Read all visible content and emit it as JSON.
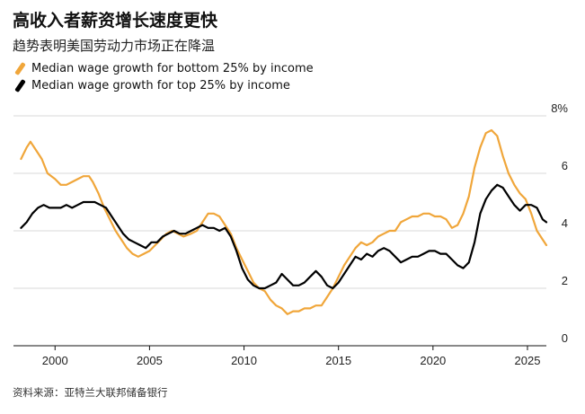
{
  "header": {
    "title": "高收入者薪资增长速度更快",
    "subtitle": "趋势表明美国劳动力市场正在降温"
  },
  "legend": [
    {
      "label": "Median wage growth for bottom 25% by income",
      "color": "#f0a63a"
    },
    {
      "label": "Median wage growth for top 25% by income",
      "color": "#000000"
    }
  ],
  "footer": {
    "source": "资料来源：亚特兰大联邦储备银行"
  },
  "chart_data": {
    "type": "line",
    "title": "高收入者薪资增长速度更快",
    "subtitle": "趋势表明美国劳动力市场正在降温",
    "xlabel": "",
    "ylabel": "",
    "xlim": [
      1997.8,
      2026.0
    ],
    "ylim": [
      0,
      8
    ],
    "grid": true,
    "x_ticks": [
      {
        "value": 2000,
        "label": "2000"
      },
      {
        "value": 2005,
        "label": "2005"
      },
      {
        "value": 2010,
        "label": "2010"
      },
      {
        "value": 2015,
        "label": "2015"
      },
      {
        "value": 2020,
        "label": "2020"
      },
      {
        "value": 2025,
        "label": "2025"
      }
    ],
    "y_ticks": [
      {
        "value": 0,
        "label": "0"
      },
      {
        "value": 2,
        "label": "2"
      },
      {
        "value": 4,
        "label": "4"
      },
      {
        "value": 6,
        "label": "6"
      },
      {
        "value": 8,
        "label": "8%"
      }
    ],
    "series": [
      {
        "name": "Median wage growth for bottom 25% by income",
        "color": "#f0a63a",
        "points": [
          [
            1998.2,
            6.5
          ],
          [
            1998.5,
            6.9
          ],
          [
            1998.7,
            7.1
          ],
          [
            1999.0,
            6.8
          ],
          [
            1999.3,
            6.5
          ],
          [
            1999.6,
            6.0
          ],
          [
            2000.0,
            5.8
          ],
          [
            2000.3,
            5.6
          ],
          [
            2000.6,
            5.6
          ],
          [
            2000.9,
            5.7
          ],
          [
            2001.2,
            5.8
          ],
          [
            2001.5,
            5.9
          ],
          [
            2001.8,
            5.9
          ],
          [
            2002.0,
            5.7
          ],
          [
            2002.3,
            5.3
          ],
          [
            2002.6,
            4.8
          ],
          [
            2002.9,
            4.4
          ],
          [
            2003.2,
            4.0
          ],
          [
            2003.5,
            3.7
          ],
          [
            2003.8,
            3.4
          ],
          [
            2004.1,
            3.2
          ],
          [
            2004.4,
            3.1
          ],
          [
            2004.7,
            3.2
          ],
          [
            2005.0,
            3.3
          ],
          [
            2005.3,
            3.5
          ],
          [
            2005.6,
            3.7
          ],
          [
            2005.9,
            3.9
          ],
          [
            2006.2,
            4.0
          ],
          [
            2006.5,
            3.9
          ],
          [
            2006.8,
            3.8
          ],
          [
            2007.2,
            3.9
          ],
          [
            2007.5,
            4.0
          ],
          [
            2007.8,
            4.3
          ],
          [
            2008.1,
            4.6
          ],
          [
            2008.4,
            4.6
          ],
          [
            2008.7,
            4.5
          ],
          [
            2009.0,
            4.2
          ],
          [
            2009.3,
            3.9
          ],
          [
            2009.6,
            3.4
          ],
          [
            2009.9,
            3.0
          ],
          [
            2010.2,
            2.6
          ],
          [
            2010.5,
            2.2
          ],
          [
            2010.8,
            2.0
          ],
          [
            2011.1,
            1.9
          ],
          [
            2011.4,
            1.6
          ],
          [
            2011.7,
            1.4
          ],
          [
            2012.0,
            1.3
          ],
          [
            2012.3,
            1.1
          ],
          [
            2012.6,
            1.2
          ],
          [
            2012.9,
            1.2
          ],
          [
            2013.2,
            1.3
          ],
          [
            2013.5,
            1.3
          ],
          [
            2013.8,
            1.4
          ],
          [
            2014.1,
            1.4
          ],
          [
            2014.4,
            1.7
          ],
          [
            2014.7,
            2.0
          ],
          [
            2015.0,
            2.4
          ],
          [
            2015.3,
            2.8
          ],
          [
            2015.6,
            3.1
          ],
          [
            2015.9,
            3.4
          ],
          [
            2016.2,
            3.6
          ],
          [
            2016.5,
            3.5
          ],
          [
            2016.8,
            3.6
          ],
          [
            2017.1,
            3.8
          ],
          [
            2017.4,
            3.9
          ],
          [
            2017.7,
            4.0
          ],
          [
            2018.0,
            4.0
          ],
          [
            2018.3,
            4.3
          ],
          [
            2018.6,
            4.4
          ],
          [
            2018.9,
            4.5
          ],
          [
            2019.2,
            4.5
          ],
          [
            2019.5,
            4.6
          ],
          [
            2019.8,
            4.6
          ],
          [
            2020.1,
            4.5
          ],
          [
            2020.4,
            4.5
          ],
          [
            2020.7,
            4.4
          ],
          [
            2021.0,
            4.1
          ],
          [
            2021.3,
            4.2
          ],
          [
            2021.6,
            4.6
          ],
          [
            2021.9,
            5.2
          ],
          [
            2022.2,
            6.2
          ],
          [
            2022.5,
            6.9
          ],
          [
            2022.8,
            7.4
          ],
          [
            2023.1,
            7.5
          ],
          [
            2023.4,
            7.3
          ],
          [
            2023.7,
            6.6
          ],
          [
            2024.0,
            6.0
          ],
          [
            2024.3,
            5.6
          ],
          [
            2024.6,
            5.3
          ],
          [
            2024.9,
            5.1
          ],
          [
            2025.2,
            4.6
          ],
          [
            2025.5,
            4.0
          ],
          [
            2025.8,
            3.7
          ],
          [
            2026.0,
            3.5
          ]
        ]
      },
      {
        "name": "Median wage growth for top 25% by income",
        "color": "#000000",
        "points": [
          [
            1998.2,
            4.1
          ],
          [
            1998.5,
            4.3
          ],
          [
            1998.8,
            4.6
          ],
          [
            1999.1,
            4.8
          ],
          [
            1999.4,
            4.9
          ],
          [
            1999.7,
            4.8
          ],
          [
            2000.0,
            4.8
          ],
          [
            2000.3,
            4.8
          ],
          [
            2000.6,
            4.9
          ],
          [
            2000.9,
            4.8
          ],
          [
            2001.2,
            4.9
          ],
          [
            2001.5,
            5.0
          ],
          [
            2001.8,
            5.0
          ],
          [
            2002.1,
            5.0
          ],
          [
            2002.4,
            4.9
          ],
          [
            2002.7,
            4.8
          ],
          [
            2003.0,
            4.5
          ],
          [
            2003.3,
            4.2
          ],
          [
            2003.6,
            3.9
          ],
          [
            2003.9,
            3.7
          ],
          [
            2004.2,
            3.6
          ],
          [
            2004.5,
            3.5
          ],
          [
            2004.8,
            3.4
          ],
          [
            2005.1,
            3.6
          ],
          [
            2005.4,
            3.6
          ],
          [
            2005.7,
            3.8
          ],
          [
            2006.0,
            3.9
          ],
          [
            2006.3,
            4.0
          ],
          [
            2006.6,
            3.9
          ],
          [
            2006.9,
            3.9
          ],
          [
            2007.2,
            4.0
          ],
          [
            2007.5,
            4.1
          ],
          [
            2007.8,
            4.2
          ],
          [
            2008.1,
            4.1
          ],
          [
            2008.4,
            4.1
          ],
          [
            2008.7,
            4.0
          ],
          [
            2009.0,
            4.1
          ],
          [
            2009.3,
            3.8
          ],
          [
            2009.6,
            3.3
          ],
          [
            2009.9,
            2.7
          ],
          [
            2010.2,
            2.3
          ],
          [
            2010.5,
            2.1
          ],
          [
            2010.8,
            2.0
          ],
          [
            2011.1,
            2.0
          ],
          [
            2011.4,
            2.1
          ],
          [
            2011.7,
            2.2
          ],
          [
            2012.0,
            2.5
          ],
          [
            2012.3,
            2.3
          ],
          [
            2012.6,
            2.1
          ],
          [
            2012.9,
            2.1
          ],
          [
            2013.2,
            2.2
          ],
          [
            2013.5,
            2.4
          ],
          [
            2013.8,
            2.6
          ],
          [
            2014.1,
            2.4
          ],
          [
            2014.4,
            2.1
          ],
          [
            2014.7,
            2.0
          ],
          [
            2015.0,
            2.2
          ],
          [
            2015.3,
            2.5
          ],
          [
            2015.6,
            2.8
          ],
          [
            2015.9,
            3.1
          ],
          [
            2016.2,
            3.0
          ],
          [
            2016.5,
            3.2
          ],
          [
            2016.8,
            3.1
          ],
          [
            2017.1,
            3.3
          ],
          [
            2017.4,
            3.4
          ],
          [
            2017.7,
            3.3
          ],
          [
            2018.0,
            3.1
          ],
          [
            2018.3,
            2.9
          ],
          [
            2018.6,
            3.0
          ],
          [
            2018.9,
            3.1
          ],
          [
            2019.2,
            3.1
          ],
          [
            2019.5,
            3.2
          ],
          [
            2019.8,
            3.3
          ],
          [
            2020.1,
            3.3
          ],
          [
            2020.4,
            3.2
          ],
          [
            2020.7,
            3.2
          ],
          [
            2021.0,
            3.0
          ],
          [
            2021.3,
            2.8
          ],
          [
            2021.6,
            2.7
          ],
          [
            2021.9,
            2.9
          ],
          [
            2022.2,
            3.6
          ],
          [
            2022.5,
            4.6
          ],
          [
            2022.8,
            5.1
          ],
          [
            2023.1,
            5.4
          ],
          [
            2023.4,
            5.6
          ],
          [
            2023.7,
            5.5
          ],
          [
            2024.0,
            5.2
          ],
          [
            2024.3,
            4.9
          ],
          [
            2024.6,
            4.7
          ],
          [
            2024.9,
            4.9
          ],
          [
            2025.2,
            4.9
          ],
          [
            2025.5,
            4.8
          ],
          [
            2025.8,
            4.4
          ],
          [
            2026.0,
            4.3
          ]
        ]
      }
    ]
  }
}
